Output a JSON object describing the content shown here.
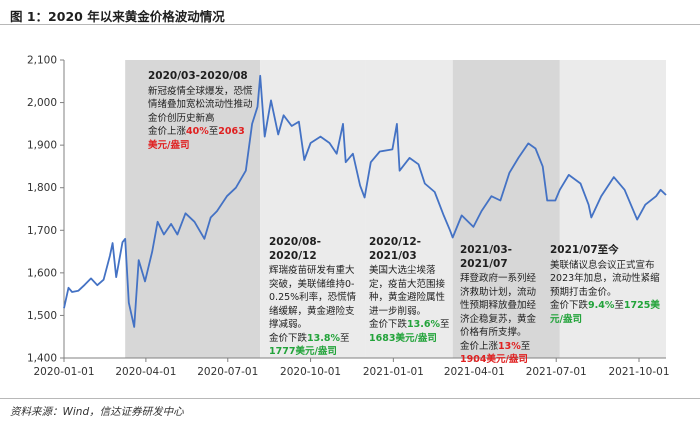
{
  "title": "图 1：2020 年以来黄金价格波动情况",
  "source": "资料来源：Wind，信达证券研发中心",
  "colors": {
    "line": "#4472c4",
    "shade_dark": "#d7d7d7",
    "shade_light": "#ebebeb",
    "up": "#e02020",
    "down": "#22a33a"
  },
  "annotations": [
    {
      "heading": "2020/03-2020/08",
      "body": "新冠疫情全球爆发，恐慌情绪叠加宽松流动性推动金价创历史新高",
      "pre": "金价上涨",
      "pct": "40%",
      "mid": "至",
      "price": "2063",
      "unit": "美元/盎司",
      "tone": "up"
    },
    {
      "heading": "2020/08-2020/12",
      "body": "辉瑞疫苗研发有重大突破，美联储维持0-0.25%利率，恐慌情绪缓解，黄金避险支撑减弱。",
      "pre": "金价下跌",
      "pct": "13.8%",
      "mid": "至",
      "price": "1777",
      "unit": "美元/盎司",
      "tone": "down"
    },
    {
      "heading": "2020/12-2021/03",
      "body": "美国大选尘埃落定，疫苗大范围接种，黄金避险属性进一步削弱。",
      "pre": "金价下跌",
      "pct": "13.6%",
      "mid": "至",
      "price": "1683",
      "unit": "美元/盎司",
      "tone": "down"
    },
    {
      "heading": "2021/03-2021/07",
      "body": "拜登政府一系列经济救助计划，流动性预期释放叠加经济企稳复苏，黄金价格有所支撑。",
      "pre": "金价上涨",
      "pct": "13%",
      "mid": "至",
      "price": "1904",
      "unit": "美元/盎司",
      "tone": "up"
    },
    {
      "heading": "2021/07至今",
      "body": "美联储议息会议正式宣布2023年加息，流动性紧缩预期打击金价。",
      "pre": "金价下跌",
      "pct": "9.4%",
      "mid": "至",
      "price": "1725",
      "unit": "美元/盎司",
      "tone": "down"
    }
  ],
  "chart_data": {
    "type": "line",
    "x_axis": {
      "ticks": [
        "2020-01-01",
        "2020-04-01",
        "2020-07-01",
        "2020-10-01",
        "2021-01-01",
        "2021-04-01",
        "2021-07-01",
        "2021-10-01"
      ],
      "range": [
        "2020-01-01",
        "2021-10-31"
      ]
    },
    "y_axis": {
      "ticks": [
        "1,400",
        "1,500",
        "1,600",
        "1,700",
        "1,800",
        "1,900",
        "2,000",
        "2,100"
      ],
      "range": [
        1400,
        2100
      ]
    },
    "grid": false,
    "shaded_periods": [
      {
        "start": "2020-03-09",
        "end": "2020-08-06",
        "shade": "dark"
      },
      {
        "start": "2020-08-06",
        "end": "2020-12-01",
        "shade": "light"
      },
      {
        "start": "2020-12-01",
        "end": "2021-03-08",
        "shade": "light"
      },
      {
        "start": "2021-03-08",
        "end": "2021-07-05",
        "shade": "dark"
      },
      {
        "start": "2021-07-05",
        "end": "2021-10-31",
        "shade": "light"
      }
    ],
    "series": [
      {
        "points": [
          [
            "2020-01-01",
            1517
          ],
          [
            "2020-01-06",
            1565
          ],
          [
            "2020-01-10",
            1555
          ],
          [
            "2020-01-17",
            1558
          ],
          [
            "2020-01-24",
            1572
          ],
          [
            "2020-01-31",
            1587
          ],
          [
            "2020-02-07",
            1571
          ],
          [
            "2020-02-14",
            1584
          ],
          [
            "2020-02-21",
            1640
          ],
          [
            "2020-02-24",
            1670
          ],
          [
            "2020-02-28",
            1590
          ],
          [
            "2020-03-06",
            1672
          ],
          [
            "2020-03-09",
            1680
          ],
          [
            "2020-03-13",
            1530
          ],
          [
            "2020-03-19",
            1473
          ],
          [
            "2020-03-24",
            1630
          ],
          [
            "2020-03-31",
            1580
          ],
          [
            "2020-04-08",
            1650
          ],
          [
            "2020-04-14",
            1720
          ],
          [
            "2020-04-21",
            1690
          ],
          [
            "2020-04-29",
            1715
          ],
          [
            "2020-05-06",
            1690
          ],
          [
            "2020-05-15",
            1740
          ],
          [
            "2020-05-25",
            1720
          ],
          [
            "2020-06-05",
            1680
          ],
          [
            "2020-06-12",
            1730
          ],
          [
            "2020-06-19",
            1745
          ],
          [
            "2020-06-30",
            1780
          ],
          [
            "2020-07-10",
            1800
          ],
          [
            "2020-07-21",
            1840
          ],
          [
            "2020-07-28",
            1950
          ],
          [
            "2020-08-03",
            1990
          ],
          [
            "2020-08-06",
            2063
          ],
          [
            "2020-08-11",
            1920
          ],
          [
            "2020-08-18",
            2005
          ],
          [
            "2020-08-26",
            1925
          ],
          [
            "2020-09-01",
            1970
          ],
          [
            "2020-09-10",
            1945
          ],
          [
            "2020-09-18",
            1955
          ],
          [
            "2020-09-24",
            1865
          ],
          [
            "2020-10-01",
            1905
          ],
          [
            "2020-10-12",
            1920
          ],
          [
            "2020-10-22",
            1905
          ],
          [
            "2020-10-30",
            1880
          ],
          [
            "2020-11-06",
            1950
          ],
          [
            "2020-11-09",
            1860
          ],
          [
            "2020-11-17",
            1880
          ],
          [
            "2020-11-25",
            1805
          ],
          [
            "2020-11-30",
            1777
          ],
          [
            "2020-12-07",
            1860
          ],
          [
            "2020-12-17",
            1885
          ],
          [
            "2020-12-31",
            1890
          ],
          [
            "2021-01-05",
            1950
          ],
          [
            "2021-01-08",
            1840
          ],
          [
            "2021-01-19",
            1870
          ],
          [
            "2021-01-29",
            1855
          ],
          [
            "2021-02-05",
            1810
          ],
          [
            "2021-02-16",
            1790
          ],
          [
            "2021-02-26",
            1735
          ],
          [
            "2021-03-05",
            1700
          ],
          [
            "2021-03-08",
            1683
          ],
          [
            "2021-03-18",
            1735
          ],
          [
            "2021-03-31",
            1708
          ],
          [
            "2021-04-09",
            1745
          ],
          [
            "2021-04-20",
            1780
          ],
          [
            "2021-04-30",
            1770
          ],
          [
            "2021-05-10",
            1835
          ],
          [
            "2021-05-20",
            1870
          ],
          [
            "2021-05-31",
            1904
          ],
          [
            "2021-06-08",
            1892
          ],
          [
            "2021-06-16",
            1850
          ],
          [
            "2021-06-21",
            1770
          ],
          [
            "2021-06-30",
            1770
          ],
          [
            "2021-07-05",
            1795
          ],
          [
            "2021-07-15",
            1830
          ],
          [
            "2021-07-28",
            1810
          ],
          [
            "2021-08-06",
            1760
          ],
          [
            "2021-08-09",
            1730
          ],
          [
            "2021-08-20",
            1780
          ],
          [
            "2021-09-03",
            1825
          ],
          [
            "2021-09-15",
            1795
          ],
          [
            "2021-09-29",
            1725
          ],
          [
            "2021-10-08",
            1760
          ],
          [
            "2021-10-20",
            1780
          ],
          [
            "2021-10-25",
            1795
          ],
          [
            "2021-10-31",
            1783
          ]
        ]
      }
    ]
  }
}
